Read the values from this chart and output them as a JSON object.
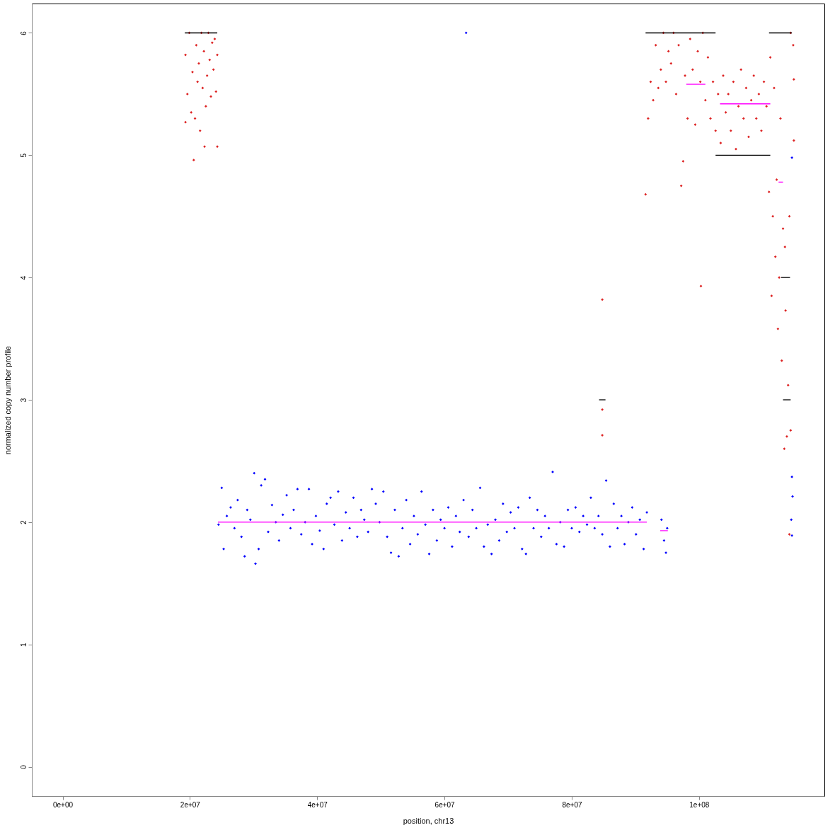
{
  "chart_data": {
    "type": "scatter",
    "xlabel": "position, chr13",
    "ylabel": "normalized copy number profile",
    "xlim": [
      -4840000,
      119700000
    ],
    "ylim": [
      -0.24,
      6.24
    ],
    "xticks": [
      {
        "value": 0,
        "label": "0e+00"
      },
      {
        "value": 20000000,
        "label": "2e+07"
      },
      {
        "value": 40000000,
        "label": "4e+07"
      },
      {
        "value": 60000000,
        "label": "6e+07"
      },
      {
        "value": 80000000,
        "label": "8e+07"
      },
      {
        "value": 100000000,
        "label": "1e+08"
      }
    ],
    "yticks": [
      0,
      1,
      2,
      3,
      4,
      5,
      6
    ],
    "grid": false,
    "marker": "diamond",
    "series": [
      {
        "color": "#0000ff",
        "x": [
          24500000,
          25000000,
          25300000,
          25800000,
          26400000,
          27000000,
          27500000,
          28100000,
          28600000,
          29000000,
          29500000,
          30100000,
          30300000,
          30800000,
          31200000,
          31800000,
          32300000,
          32900000,
          33500000,
          34000000,
          34600000,
          35200000,
          35800000,
          36300000,
          36900000,
          37500000,
          38100000,
          38700000,
          39200000,
          39800000,
          40400000,
          41000000,
          41500000,
          42100000,
          42700000,
          43300000,
          43900000,
          44500000,
          45100000,
          45700000,
          46300000,
          46900000,
          47400000,
          48000000,
          48600000,
          49200000,
          49800000,
          50400000,
          51000000,
          51600000,
          52200000,
          52800000,
          53400000,
          54000000,
          54600000,
          55200000,
          55800000,
          56400000,
          57000000,
          57600000,
          58200000,
          58800000,
          59400000,
          60000000,
          60600000,
          61200000,
          61800000,
          62400000,
          63000000,
          63400000,
          63800000,
          64400000,
          65000000,
          65600000,
          66200000,
          66800000,
          67400000,
          68000000,
          68600000,
          69200000,
          69800000,
          70400000,
          71000000,
          71600000,
          72200000,
          72800000,
          73400000,
          74000000,
          74600000,
          75200000,
          75800000,
          76400000,
          77000000,
          77600000,
          78200000,
          78800000,
          79400000,
          80000000,
          80600000,
          81200000,
          81800000,
          82400000,
          83000000,
          83600000,
          84200000,
          84800000,
          85400000,
          86000000,
          86600000,
          87200000,
          87800000,
          88300000,
          88900000,
          89500000,
          90100000,
          90700000,
          91300000,
          91800000,
          94100000,
          94500000,
          94800000,
          95000000,
          114600000,
          114600000,
          114700000,
          114500000,
          114600000
        ],
        "values": [
          1.98,
          2.28,
          1.78,
          2.05,
          2.12,
          1.95,
          2.18,
          1.88,
          1.72,
          2.1,
          2.02,
          2.4,
          1.66,
          1.78,
          2.3,
          2.35,
          1.92,
          2.14,
          2.0,
          1.85,
          2.06,
          2.22,
          1.95,
          2.1,
          2.27,
          1.9,
          2.0,
          2.27,
          1.82,
          2.05,
          1.93,
          1.78,
          2.15,
          2.2,
          1.98,
          2.25,
          1.85,
          2.08,
          1.95,
          2.2,
          1.88,
          2.1,
          2.02,
          1.92,
          2.27,
          2.15,
          2.0,
          2.25,
          1.88,
          1.75,
          2.1,
          1.72,
          1.95,
          2.18,
          1.82,
          2.05,
          1.9,
          2.25,
          1.98,
          1.74,
          2.1,
          1.85,
          2.02,
          1.95,
          2.12,
          1.8,
          2.05,
          1.92,
          2.18,
          6.0,
          1.88,
          2.1,
          1.95,
          2.28,
          1.8,
          1.98,
          1.74,
          2.02,
          1.85,
          2.15,
          1.92,
          2.08,
          1.95,
          2.12,
          1.78,
          1.74,
          2.2,
          1.95,
          2.1,
          1.88,
          2.05,
          1.95,
          2.41,
          1.82,
          2.0,
          1.8,
          2.1,
          1.95,
          2.12,
          1.92,
          2.05,
          1.98,
          2.2,
          1.95,
          2.05,
          1.9,
          2.34,
          1.8,
          2.15,
          1.95,
          2.05,
          1.82,
          2.0,
          2.12,
          1.9,
          2.02,
          1.78,
          2.08,
          2.02,
          1.85,
          1.75,
          1.95,
          4.98,
          2.37,
          2.21,
          2.02,
          1.89
        ]
      },
      {
        "color": "#dd2222",
        "x": [
          19300000,
          19300000,
          19600000,
          19900000,
          20200000,
          20400000,
          20600000,
          20800000,
          21000000,
          21200000,
          21400000,
          21600000,
          21800000,
          22000000,
          22200000,
          22300000,
          22500000,
          22700000,
          22900000,
          23100000,
          23300000,
          23500000,
          23700000,
          23900000,
          24100000,
          24300000,
          24300000,
          84800000,
          84800000,
          84800000,
          91600000,
          92000000,
          92400000,
          92800000,
          93200000,
          93600000,
          94000000,
          94400000,
          94800000,
          95200000,
          95600000,
          96000000,
          96400000,
          96800000,
          97200000,
          97500000,
          97800000,
          98200000,
          98600000,
          99000000,
          99400000,
          99800000,
          100200000,
          100300000,
          100600000,
          101000000,
          101400000,
          101800000,
          102200000,
          102600000,
          103000000,
          103400000,
          103800000,
          104200000,
          104600000,
          105000000,
          105400000,
          105800000,
          106200000,
          106600000,
          107000000,
          107400000,
          107800000,
          108200000,
          108600000,
          109000000,
          109400000,
          109800000,
          110200000,
          110600000,
          111000000,
          111200000,
          111400000,
          111600000,
          111800000,
          112000000,
          112200000,
          112400000,
          112600000,
          112800000,
          113000000,
          113200000,
          113400000,
          113500000,
          113600000,
          113800000,
          114000000,
          114200000,
          114400000,
          114800000,
          114900000,
          114900000,
          114200000,
          114400000
        ],
        "values": [
          5.82,
          5.27,
          5.5,
          6.0,
          5.35,
          5.68,
          4.96,
          5.3,
          5.9,
          5.6,
          5.75,
          5.2,
          6.0,
          5.55,
          5.85,
          5.07,
          5.4,
          5.65,
          6.0,
          5.78,
          5.48,
          5.92,
          5.7,
          5.95,
          5.52,
          5.07,
          5.82,
          3.82,
          2.92,
          2.71,
          4.68,
          5.3,
          5.6,
          5.45,
          5.9,
          5.55,
          5.7,
          6.0,
          5.6,
          5.85,
          5.75,
          6.0,
          5.5,
          5.9,
          4.75,
          4.95,
          5.65,
          5.3,
          5.95,
          5.7,
          5.25,
          5.85,
          5.6,
          3.93,
          6.0,
          5.45,
          5.8,
          5.3,
          5.6,
          5.2,
          5.5,
          5.1,
          5.65,
          5.35,
          5.5,
          5.2,
          5.6,
          5.05,
          5.4,
          5.7,
          5.3,
          5.55,
          5.15,
          5.45,
          5.65,
          5.3,
          5.5,
          5.2,
          5.6,
          5.4,
          4.7,
          5.8,
          3.85,
          4.5,
          5.55,
          4.17,
          4.8,
          3.58,
          4.0,
          5.3,
          3.32,
          4.4,
          2.6,
          4.25,
          3.73,
          2.7,
          3.12,
          4.5,
          6.0,
          5.9,
          5.62,
          5.12,
          1.9,
          2.75
        ]
      },
      {
        "type": "line",
        "marker": "none",
        "line_style": "solid",
        "color": "#000000",
        "x": [
          19200000,
          24300000
        ],
        "values": [
          6,
          6
        ]
      },
      {
        "type": "line",
        "marker": "none",
        "line_style": "solid",
        "color": "#000000",
        "x": [
          91600000,
          102600000
        ],
        "values": [
          6,
          6
        ]
      },
      {
        "type": "line",
        "marker": "none",
        "line_style": "solid",
        "color": "#000000",
        "x": [
          102600000,
          111200000
        ],
        "values": [
          5,
          5
        ]
      },
      {
        "type": "line",
        "marker": "none",
        "line_style": "solid",
        "color": "#000000",
        "x": [
          111000000,
          114600000
        ],
        "values": [
          6,
          6
        ]
      },
      {
        "type": "line",
        "marker": "none",
        "line_style": "solid",
        "color": "#000000",
        "x": [
          112900000,
          114300000
        ],
        "values": [
          4,
          4
        ]
      },
      {
        "type": "line",
        "marker": "none",
        "line_style": "solid",
        "color": "#000000",
        "x": [
          84300000,
          85300000
        ],
        "values": [
          3,
          3
        ]
      },
      {
        "type": "line",
        "marker": "none",
        "line_style": "solid",
        "color": "#000000",
        "x": [
          113200000,
          114400000
        ],
        "values": [
          3,
          3
        ]
      },
      {
        "type": "line",
        "marker": "none",
        "line_style": "solid",
        "color": "#ff00ff",
        "x": [
          24400000,
          91800000
        ],
        "values": [
          2.0,
          2.0
        ]
      },
      {
        "type": "line",
        "marker": "none",
        "line_style": "solid",
        "color": "#ff00ff",
        "x": [
          93900000,
          95100000
        ],
        "values": [
          1.93,
          1.93
        ]
      },
      {
        "type": "line",
        "marker": "none",
        "line_style": "solid",
        "color": "#ff00ff",
        "x": [
          98000000,
          101000000
        ],
        "values": [
          5.58,
          5.58
        ]
      },
      {
        "type": "line",
        "marker": "none",
        "line_style": "solid",
        "color": "#ff00ff",
        "x": [
          103300000,
          111200000
        ],
        "values": [
          5.42,
          5.42
        ]
      },
      {
        "type": "line",
        "marker": "none",
        "line_style": "solid",
        "color": "#ff00ff",
        "x": [
          112500000,
          113200000
        ],
        "values": [
          4.78,
          4.78
        ]
      }
    ]
  }
}
